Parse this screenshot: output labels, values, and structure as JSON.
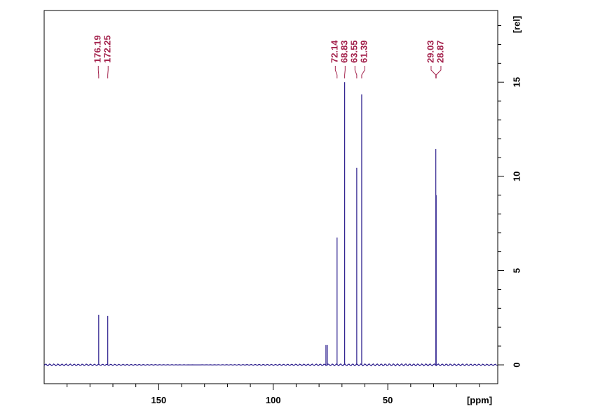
{
  "chart_data": {
    "type": "nmr",
    "xlabel": "[ppm]",
    "ylabel": "[rel]",
    "xlim": [
      200,
      2
    ],
    "ylim": [
      -1,
      18.8
    ],
    "xticks": [
      150,
      100,
      50
    ],
    "xminorticks": [
      190,
      180,
      170,
      160,
      140,
      130,
      120,
      110,
      90,
      80,
      70,
      60,
      40,
      30,
      20,
      10
    ],
    "yticks": [
      0,
      5,
      10,
      15
    ],
    "yminorticks": [
      1,
      2,
      3,
      4,
      6,
      7,
      8,
      9,
      11,
      12,
      13,
      14,
      16,
      17,
      18
    ],
    "color": "#2a1c8c",
    "label_color": "#a3224c",
    "peaks": {
      "x": [
        176.19,
        172.25,
        72.14,
        68.83,
        63.55,
        61.39,
        29.03,
        28.87
      ],
      "values": [
        2.65,
        2.6,
        6.75,
        15.0,
        10.45,
        14.35,
        11.45,
        9.0
      ]
    },
    "unlabeled_peaks": {
      "x": [
        77.0
      ],
      "values": [
        1.05
      ]
    }
  }
}
